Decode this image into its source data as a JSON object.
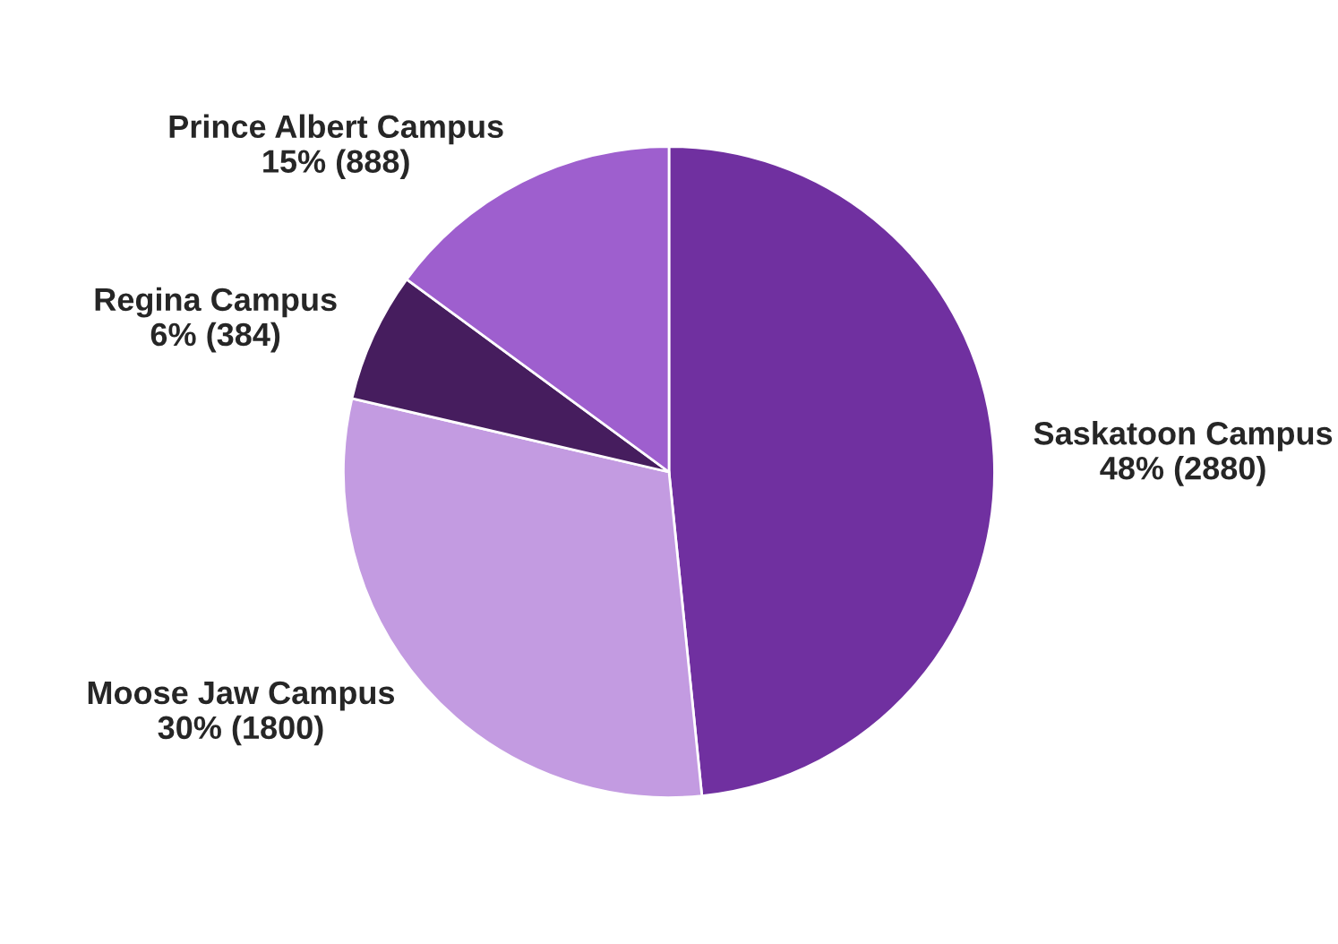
{
  "chart_data": {
    "type": "pie",
    "categories": [
      "Saskatoon Campus",
      "Moose Jaw Campus",
      "Regina Campus",
      "Prince Albert Campus"
    ],
    "values": [
      2880,
      1800,
      384,
      888
    ],
    "value_labels": [
      "48% (2880)",
      "30% (1800)",
      "6% (384)",
      "15% (888)"
    ],
    "colors": [
      "#7030a0",
      "#c39be1",
      "#461d5e",
      "#9e5fce"
    ],
    "legend": false
  }
}
